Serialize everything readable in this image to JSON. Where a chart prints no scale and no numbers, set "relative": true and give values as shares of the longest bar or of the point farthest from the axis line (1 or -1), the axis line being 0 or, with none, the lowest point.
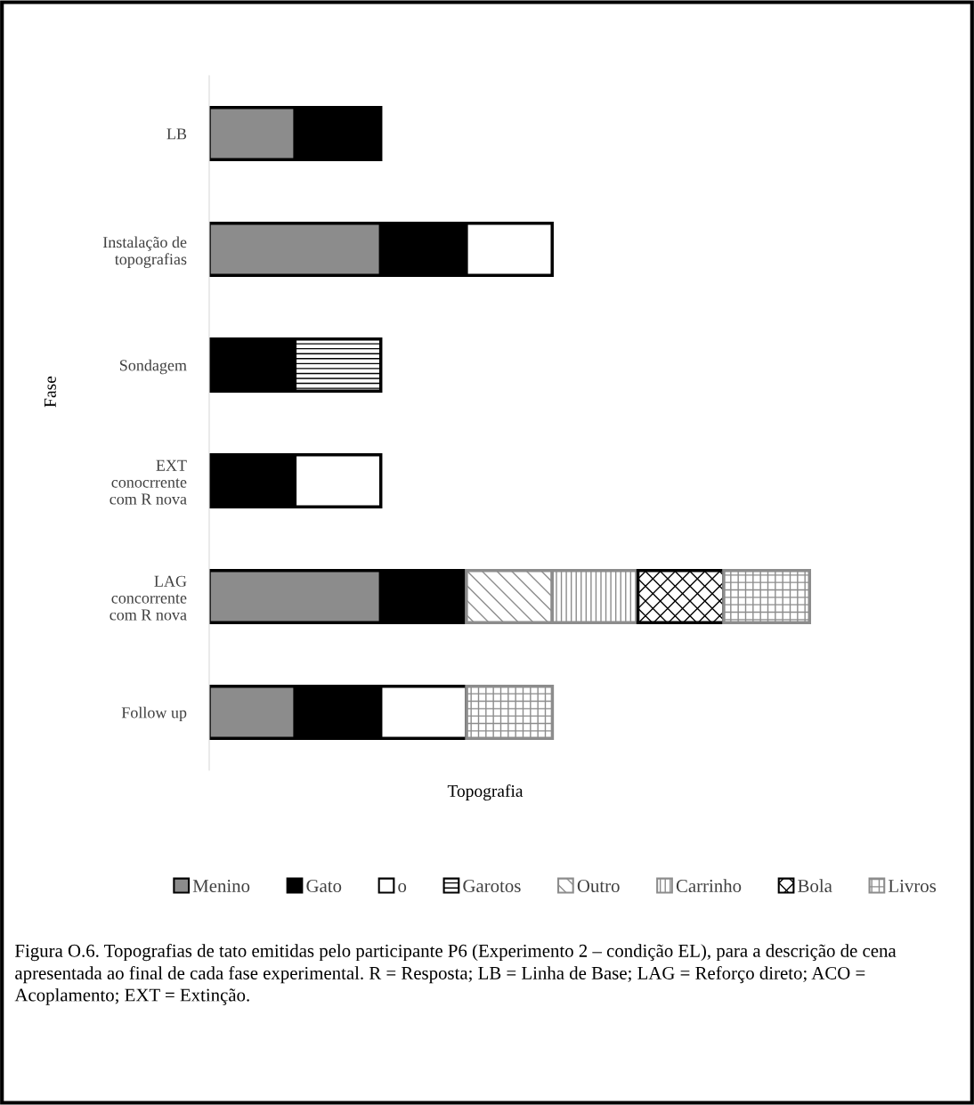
{
  "chart_data": {
    "type": "bar",
    "orientation": "horizontal",
    "stacked": true,
    "relative": true,
    "ylabel": "Fase",
    "xlabel": "Topografia",
    "categories": [
      "LB",
      "Instalação de\ntopografias",
      "Sondagem",
      "EXT\nconocrrente\ncom R nova",
      "LAG\nconcorrente\ncom R nova",
      "Follow up"
    ],
    "series": [
      {
        "name": "Menino",
        "color": "#8c8c8c",
        "values": [
          0.1429,
          0.2855,
          null,
          null,
          0.2855,
          0.1429
        ]
      },
      {
        "name": "Gato",
        "color": "#000000",
        "values": [
          0.1429,
          0.1429,
          0.1429,
          0.1429,
          0.1429,
          0.1429
        ]
      },
      {
        "name": "o",
        "color": "#ffffff",
        "values": [
          null,
          0.1429,
          null,
          0.1429,
          null,
          0.1429
        ]
      },
      {
        "name": "Garotos",
        "color": "#000000",
        "values": [
          null,
          null,
          0.1429,
          null,
          null,
          null
        ]
      },
      {
        "name": "Outro",
        "color": "#8c8c8c",
        "values": [
          null,
          null,
          null,
          null,
          0.1429,
          null
        ]
      },
      {
        "name": "Carrinho",
        "color": "#8c8c8c",
        "values": [
          null,
          null,
          null,
          null,
          0.1429,
          null
        ]
      },
      {
        "name": "Bola",
        "color": "#000000",
        "values": [
          null,
          null,
          null,
          null,
          0.1429,
          null
        ]
      },
      {
        "name": "Livros",
        "color": "#8c8c8c",
        "values": [
          null,
          null,
          null,
          null,
          0.1429,
          0.1429
        ]
      }
    ],
    "legend": "bottom",
    "grid": false,
    "annotations": [
      "Figura O.6. Topografias de tato emitidas pelo participante P6 (Experimento 2 – condição EL), para a descrição de cena apresentada ao final de cada fase experimental. R = Resposta; LB = Linha de Base; LAG = Reforço direto; ACO = Acoplamento; EXT = Extinção."
    ]
  }
}
